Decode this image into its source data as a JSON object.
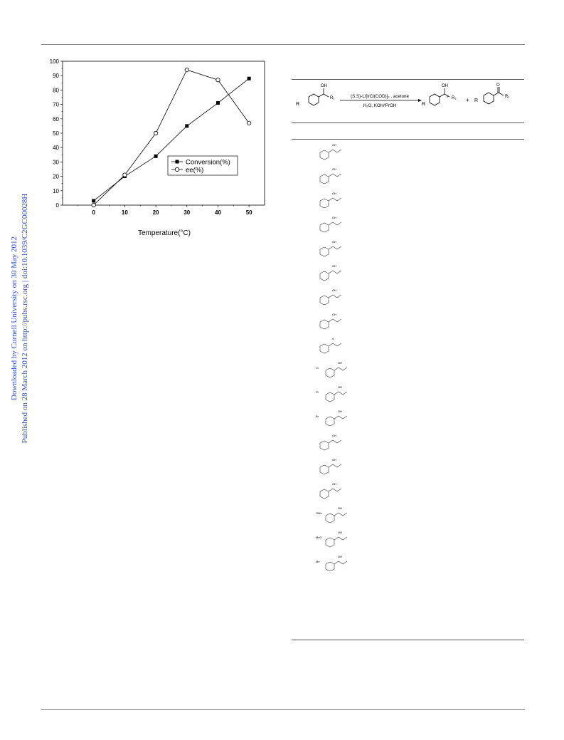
{
  "sidebar": {
    "line1": "Downloaded by Cornell University on 30 May 2012",
    "line2": "Published on 28 March 2012 on http://pubs.rsc.org | doi:10.1039/C2GC00028H"
  },
  "chart_data": {
    "type": "line",
    "xlabel": "Temperature(°C)",
    "ylabel": "",
    "x": [
      0,
      10,
      20,
      30,
      40,
      50
    ],
    "xlim": [
      -10,
      55
    ],
    "ylim": [
      0,
      100
    ],
    "xticks": [
      "0",
      "10",
      "20",
      "30",
      "40",
      "50"
    ],
    "yticks": [
      "0",
      "10",
      "20",
      "30",
      "40",
      "50",
      "60",
      "70",
      "80",
      "90",
      "100"
    ],
    "legend_position": "center-right",
    "series": [
      {
        "name": "Conversion(%)",
        "marker": "filled-square",
        "values": [
          3,
          20,
          34,
          55,
          71,
          88
        ]
      },
      {
        "name": "ee(%)",
        "marker": "open-circle",
        "values": [
          0,
          21,
          50,
          94,
          87,
          57
        ]
      }
    ]
  },
  "scheme": {
    "reagent_top": "(S,S)-L/[IrCl(COD)]₂ , acetone",
    "reagent_bottom": "H₂O, KOH/ⁱPrOH",
    "oh_label": "OH",
    "r1_label": "R₁",
    "r_label": "R",
    "plus": "+",
    "star": "*",
    "o_label": "O"
  },
  "substrates": [
    {
      "label": "OH",
      "sub": ""
    },
    {
      "label": "OH",
      "sub": ""
    },
    {
      "label": "OH",
      "sub": ""
    },
    {
      "label": "OH",
      "sub": ""
    },
    {
      "label": "OH",
      "sub": ""
    },
    {
      "label": "OH",
      "sub": ""
    },
    {
      "label": "OH",
      "sub": ""
    },
    {
      "label": "OH",
      "sub": ""
    },
    {
      "label": "O",
      "sub": ""
    },
    {
      "label": "OH",
      "sub": "Cl"
    },
    {
      "label": "OH",
      "sub": "Cl"
    },
    {
      "label": "OH",
      "sub": "Br"
    },
    {
      "label": "OH",
      "sub": ""
    },
    {
      "label": "OH",
      "sub": ""
    },
    {
      "label": "OH",
      "sub": ""
    },
    {
      "label": "OH",
      "sub": "OMe"
    },
    {
      "label": "OH",
      "sub": "MeO"
    },
    {
      "label": "OH",
      "sub": "Me"
    }
  ]
}
